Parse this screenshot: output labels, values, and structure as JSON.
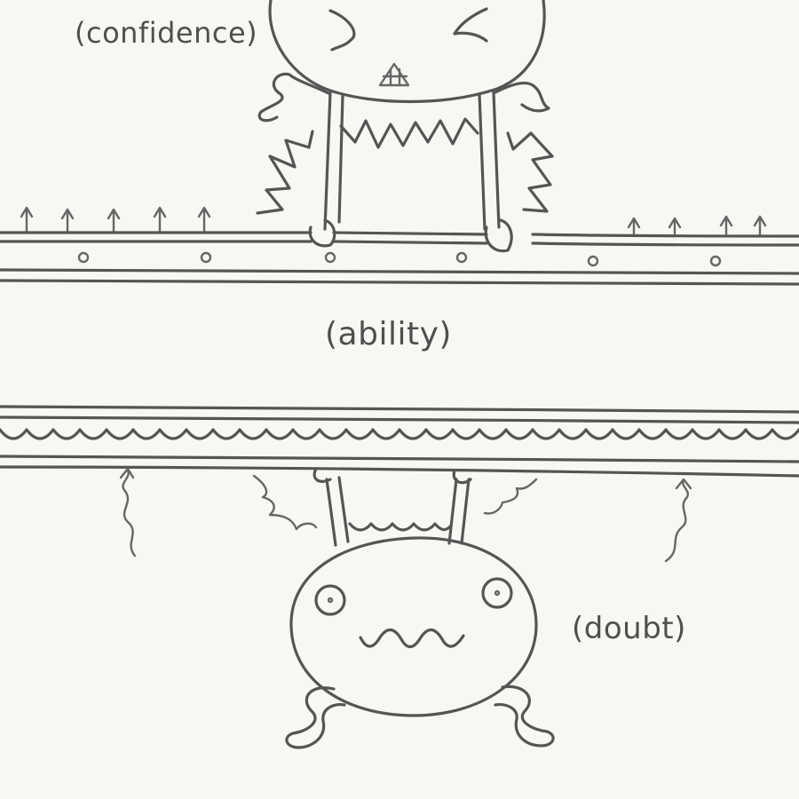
{
  "labels": {
    "confidence": "(confidence)",
    "ability": "(ability)",
    "doubt": "(doubt)"
  },
  "colors": {
    "paper": "#f8f7f3",
    "ink": "#555555"
  }
}
